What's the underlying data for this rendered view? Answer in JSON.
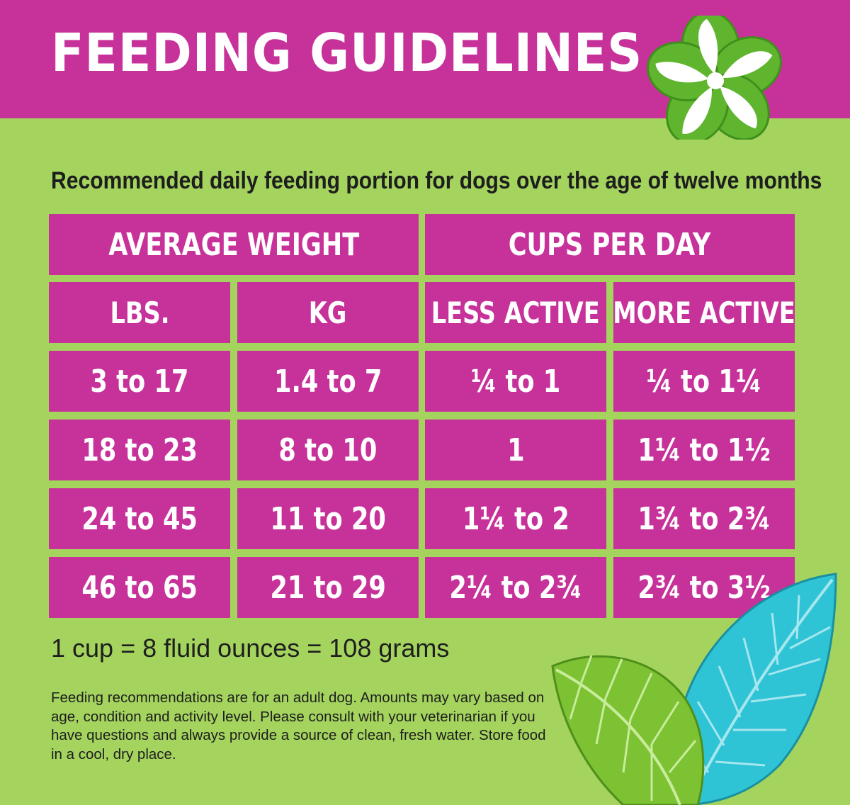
{
  "title": "FEEDING GUIDELINES",
  "subtitle": "Recommended daily feeding portion for dogs over the age of twelve months",
  "table": {
    "group_headers": [
      "AVERAGE WEIGHT",
      "CUPS PER DAY"
    ],
    "column_headers": [
      "LBS.",
      "KG",
      "LESS ACTIVE",
      "MORE ACTIVE"
    ],
    "rows": [
      [
        "3 to 17",
        "1.4 to 7",
        "¼ to 1",
        "¼ to 1¼"
      ],
      [
        "18 to 23",
        "8 to 10",
        "1",
        "1¼ to 1½"
      ],
      [
        "24 to 45",
        "11 to 20",
        "1¼ to 2",
        "1¾ to 2¾"
      ],
      [
        "46 to 65",
        "21 to 29",
        "2¼ to 2¾",
        "2¾ to 3½"
      ]
    ]
  },
  "conversion": "1 cup = 8 fluid ounces = 108 grams",
  "note": "Feeding recommendations are for an adult dog.  Amounts may vary based on age, condition and activity level.  Please consult with your veterinarian if you have questions and always provide a source of clean, fresh water.  Store food in a cool, dry place.",
  "colors": {
    "background": "#a4d45e",
    "magenta": "#c7319a",
    "text_dark": "#1e1e1e",
    "leaf_cyan": "#2ec4d6",
    "leaf_green": "#7cc232",
    "flower_green": "#5fb52e"
  },
  "decorations": [
    "hibiscus-flower-icon",
    "tropical-leaf-cyan-icon",
    "tropical-leaf-green-icon"
  ]
}
